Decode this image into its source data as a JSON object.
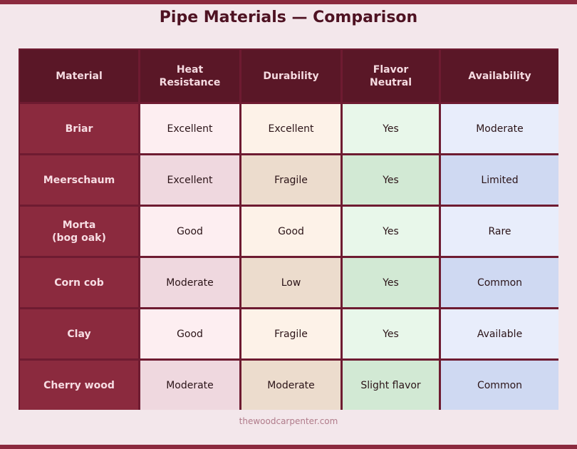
{
  "title": "Pipe Materials — Comparison",
  "headers": [
    "Material",
    "Heat\nResistance",
    "Durability",
    "Flavor\nNeutral",
    "Availability"
  ],
  "rows": [
    {
      "material": "Briar",
      "heat": "Excellent",
      "durability": "Excellent",
      "flavor": "Yes",
      "availability": "Moderate"
    },
    {
      "material": "Meerschaum",
      "heat": "Excellent",
      "durability": "Fragile",
      "flavor": "Yes",
      "availability": "Limited"
    },
    {
      "material": "Morta\n(bog oak)",
      "heat": "Good",
      "durability": "Good",
      "flavor": "Yes",
      "availability": "Rare"
    },
    {
      "material": "Corn cob",
      "heat": "Moderate",
      "durability": "Low",
      "flavor": "Yes",
      "availability": "Common"
    },
    {
      "material": "Clay",
      "heat": "Good",
      "durability": "Fragile",
      "flavor": "Yes",
      "availability": "Available"
    },
    {
      "material": "Cherry wood",
      "heat": "Moderate",
      "durability": "Moderate",
      "flavor": "Slight flavor",
      "availability": "Common"
    }
  ],
  "footer": "thewoodcarpenter.com",
  "colors": {
    "accent": "#8b2a3e",
    "header_bg": "#5a1727",
    "title": "#4e1222",
    "background": "#f3e7eb"
  }
}
